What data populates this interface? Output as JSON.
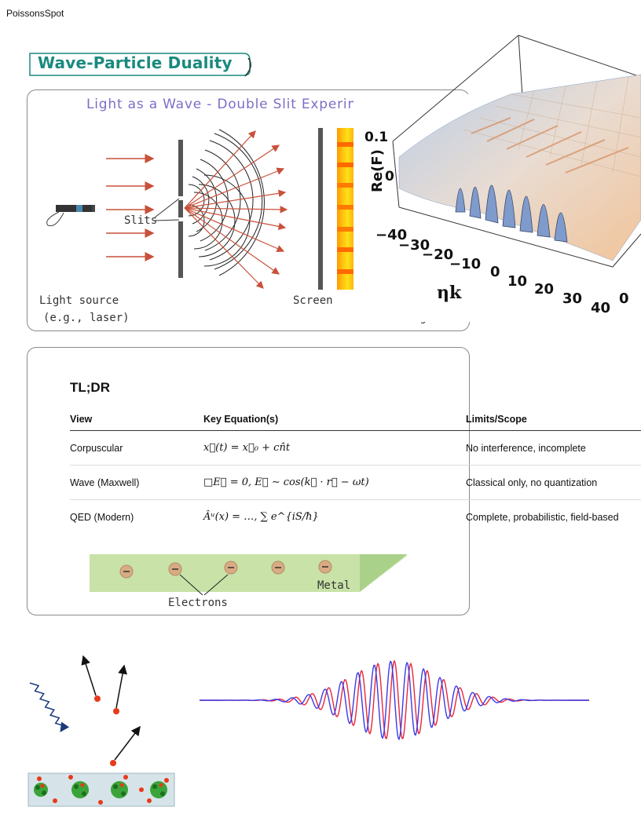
{
  "site": {
    "name": "PoissonsSpot"
  },
  "title_banner": {
    "text": "Wave-Particle Duality"
  },
  "double_slit": {
    "title": "Light as a Wave - Double Slit Experiment",
    "slits_label": "Slits",
    "screen_label": "Screen",
    "source_label_1": "Light source",
    "source_label_2": "(e.g., laser)",
    "fringes_label": "the fringes"
  },
  "surface_plot": {
    "ylabel": "Re(F)",
    "xlabel": "ηk",
    "z_ticks": [
      "0.1",
      "0"
    ],
    "x_ticks": [
      "−40",
      "−30",
      "−20",
      "−10",
      "0",
      "10",
      "20",
      "30",
      "40"
    ],
    "y_tick": "0"
  },
  "tldr": {
    "heading": "TL;DR",
    "columns": [
      "View",
      "Key Equation(s)",
      "Limits/Scope"
    ],
    "rows": [
      {
        "view": "Corpuscular",
        "equation": "x⃗(t) = x⃗₀ + cn̂t",
        "limits": "No interference, incomplete"
      },
      {
        "view": "Wave (Maxwell)",
        "equation": "□E⃗ = 0, E⃗ ∼ cos(k⃗ · r⃗ − ωt)",
        "limits": "Classical only, no quantization"
      },
      {
        "view": "QED (Modern)",
        "equation": "Âᵘ(x) = …, ∑ e^{iS/ħ}",
        "limits": "Complete, probabilistic, field-based"
      }
    ]
  },
  "metal_diagram": {
    "metal_label": "Metal",
    "electrons_label": "Electrons"
  },
  "colors": {
    "teal": "#1a8a7e",
    "title_purple": "#7b6fc8",
    "arrow_red": "#c9503a",
    "metal_green": "#c8e2a8",
    "wave_red": "#e8263a",
    "wave_blue": "#3a3ae8"
  }
}
